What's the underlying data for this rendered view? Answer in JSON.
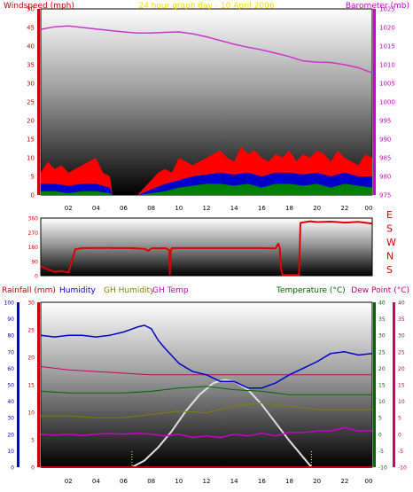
{
  "colors": {
    "wind_axis": "#cc0000",
    "baro_axis": "#cc00cc",
    "title": "#ffd700",
    "wind_gust": "#ff0000",
    "wind_avg": "#0000cc",
    "wind_low": "#008000",
    "barometer": "#cc33cc",
    "direction": "#dd0000",
    "rain": "#cc0000",
    "humidity": "#0000cc",
    "gh_humidity": "#808000",
    "gh_temp": "#cc00cc",
    "temperature": "#006600",
    "dew_point": "#cc0066",
    "solar": "#e0e0e0"
  },
  "chart_data": [
    {
      "type": "line",
      "title": "24 hour graph day - 10 April 2006",
      "ylabel": "Windspeed (mph)",
      "ylabel_right": "Barometer (mb)",
      "ylim": [
        0,
        50
      ],
      "ylim_right": [
        975,
        1025
      ],
      "yticks": [
        "0",
        "5",
        "10",
        "15",
        "20",
        "25",
        "30",
        "35",
        "40",
        "45",
        "50"
      ],
      "yticks_right": [
        "975",
        "980",
        "985",
        "990",
        "995",
        "1000",
        "1005",
        "1010",
        "1015",
        "1020",
        "1025"
      ],
      "xlim": [
        0,
        24
      ],
      "xticks": [
        "02",
        "04",
        "06",
        "08",
        "10",
        "12",
        "14",
        "16",
        "18",
        "20",
        "22",
        "00"
      ],
      "series": [
        {
          "id": "gust",
          "x": [
            0,
            0.5,
            1,
            1.5,
            2,
            2.5,
            3,
            3.5,
            4,
            4.5,
            5,
            5.2,
            7,
            7.5,
            8,
            8.5,
            9,
            9.5,
            10,
            10.5,
            11,
            11.5,
            12,
            12.5,
            13,
            13.5,
            14,
            14.5,
            15,
            15.5,
            16,
            16.5,
            17,
            17.5,
            18,
            18.5,
            19,
            19.5,
            20,
            20.5,
            21,
            21.5,
            22,
            22.5,
            23,
            23.5,
            24
          ],
          "values": [
            6,
            9,
            7,
            8,
            6,
            7,
            8,
            9,
            10,
            6,
            5,
            0,
            0,
            2,
            4,
            6,
            7,
            6,
            10,
            9,
            8,
            9,
            10,
            11,
            12,
            10,
            9,
            13,
            11,
            12,
            10,
            9,
            11,
            10,
            12,
            9,
            11,
            10,
            12,
            11,
            9,
            12,
            10,
            9,
            8,
            11,
            10
          ]
        },
        {
          "id": "avg",
          "x": [
            0,
            1,
            2,
            3,
            4,
            5,
            5.2,
            7,
            8,
            9,
            10,
            11,
            12,
            13,
            14,
            15,
            16,
            17,
            18,
            19,
            20,
            21,
            22,
            23,
            24
          ],
          "values": [
            3,
            3,
            2.5,
            3,
            3,
            2,
            0,
            0,
            1.5,
            3,
            4,
            5,
            5.5,
            6,
            5.5,
            6,
            5,
            6,
            6,
            5.5,
            6,
            5,
            6,
            5,
            5
          ]
        },
        {
          "id": "low",
          "x": [
            0,
            1,
            2,
            3,
            4,
            5,
            5.2,
            7,
            8,
            9,
            10,
            11,
            12,
            13,
            14,
            15,
            16,
            17,
            18,
            19,
            20,
            21,
            22,
            23,
            24
          ],
          "values": [
            1,
            1,
            0.5,
            1,
            1,
            0.5,
            0,
            0,
            0.5,
            1,
            2,
            2.5,
            3,
            3,
            2.5,
            3,
            2,
            3,
            3,
            2.5,
            3,
            2,
            3,
            2.5,
            2
          ]
        },
        {
          "id": "baro",
          "x": [
            0,
            1,
            2,
            3,
            4,
            5,
            6,
            7,
            8,
            9,
            10,
            11,
            12,
            13,
            14,
            15,
            16,
            17,
            18,
            19,
            20,
            21,
            22,
            23,
            24
          ],
          "values": [
            1019.5,
            1020.2,
            1020.4,
            1020.0,
            1019.6,
            1019.2,
            1018.8,
            1018.5,
            1018.5,
            1018.7,
            1018.8,
            1018.3,
            1017.5,
            1016.5,
            1015.5,
            1014.7,
            1014.0,
            1013.1,
            1012.2,
            1011.0,
            1010.7,
            1010.6,
            1010.0,
            1009.2,
            1007.8
          ]
        }
      ]
    },
    {
      "type": "line",
      "labels": [
        "E",
        "S",
        "W",
        "N",
        "S"
      ],
      "ylim": [
        0,
        360
      ],
      "yticks": [
        "0",
        "90",
        "180",
        "270",
        "360"
      ],
      "xlim": [
        0,
        24
      ],
      "series": [
        {
          "id": "direction",
          "x": [
            0,
            0.5,
            1,
            1.5,
            2,
            2.1,
            2.5,
            3,
            4,
            5,
            6,
            6.5,
            7,
            7.5,
            7.8,
            8,
            8.2,
            8.5,
            9,
            9.3,
            9.35,
            9.4,
            9.5,
            10,
            11,
            12,
            13,
            14,
            15,
            16,
            17,
            17.2,
            17.3,
            17.4,
            17.5,
            18.7,
            18.8,
            19.5,
            20,
            21,
            22,
            23,
            24
          ],
          "values": [
            60,
            40,
            25,
            30,
            20,
            45,
            165,
            172,
            173,
            173,
            172,
            172,
            170,
            168,
            155,
            170,
            172,
            170,
            172,
            160,
            10,
            150,
            172,
            172,
            172,
            172,
            172,
            172,
            172,
            172,
            170,
            200,
            175,
            40,
            5,
            5,
            330,
            340,
            335,
            338,
            332,
            336,
            325
          ]
        }
      ]
    },
    {
      "type": "line",
      "title": "",
      "ylabel": "Rainfall (mm)",
      "labels": [
        "Humidity",
        "GH Humidity",
        "GH Temp",
        "Temperature (°C)",
        "Dew Point (°C)"
      ],
      "ylim_humidity": [
        0,
        100
      ],
      "ylim_rain": [
        0,
        30
      ],
      "ylim_temp": [
        -10,
        40
      ],
      "yticks_humidity": [
        "0",
        "10",
        "20",
        "30",
        "40",
        "50",
        "60",
        "70",
        "80",
        "90",
        "100"
      ],
      "yticks_rain": [
        "0",
        "5",
        "10",
        "15",
        "20",
        "25",
        "30"
      ],
      "yticks_temp": [
        "-10",
        "-5",
        "0",
        "5",
        "10",
        "15",
        "20",
        "25",
        "30",
        "35",
        "40"
      ],
      "xlim": [
        0,
        24
      ],
      "xticks": [
        "02",
        "04",
        "06",
        "08",
        "10",
        "12",
        "14",
        "16",
        "18",
        "20",
        "22",
        "00"
      ],
      "series": [
        {
          "id": "humidity",
          "x": [
            0,
            1,
            2,
            3,
            4,
            5,
            6,
            7,
            7.5,
            8,
            8.5,
            9,
            10,
            11,
            12,
            13,
            14,
            15,
            16,
            17,
            18,
            19,
            20,
            21,
            22,
            23,
            24
          ],
          "values": [
            80,
            79,
            80,
            80,
            79,
            80,
            82,
            85,
            86,
            84,
            77,
            72,
            63,
            58,
            56,
            52,
            52,
            48,
            48,
            51,
            56,
            60,
            64,
            69,
            70,
            68,
            69
          ]
        },
        {
          "id": "gh_humidity",
          "x": [
            0,
            2,
            4,
            6,
            8,
            10,
            12,
            14,
            16,
            18,
            20,
            22,
            24
          ],
          "values": [
            31,
            31,
            30,
            30,
            32,
            34,
            33,
            37,
            39,
            37,
            35,
            35,
            35
          ]
        },
        {
          "id": "gh_temp",
          "x": [
            0,
            1,
            2,
            3,
            4,
            5,
            6,
            7,
            8,
            9,
            10,
            11,
            12,
            13,
            14,
            15,
            16,
            17,
            18,
            19,
            20,
            21,
            22,
            23,
            24
          ],
          "values": [
            0,
            -0.3,
            0,
            -0.4,
            0,
            0.2,
            0,
            0.3,
            0,
            -0.5,
            0,
            -1,
            -0.5,
            -1,
            0,
            -0.5,
            0.3,
            -0.5,
            0.5,
            0.5,
            1,
            1,
            2,
            1,
            1
          ]
        },
        {
          "id": "temperature",
          "x": [
            0,
            2,
            4,
            6,
            8,
            10,
            12,
            14,
            16,
            18,
            20,
            22,
            24
          ],
          "values": [
            13,
            12.5,
            12.5,
            12.5,
            13,
            14,
            14.5,
            13.5,
            13,
            12,
            12,
            12,
            12
          ]
        },
        {
          "id": "dew_point",
          "x": [
            0,
            2,
            4,
            6,
            8,
            10,
            12,
            14,
            16,
            18,
            20,
            22,
            24
          ],
          "values": [
            20.5,
            19.5,
            19,
            18.5,
            18,
            18,
            18,
            18,
            18,
            18,
            18,
            18,
            18
          ]
        },
        {
          "id": "solar",
          "x": [
            6.6,
            7.5,
            8.5,
            9.5,
            10.5,
            11.5,
            12.5,
            13.3,
            14,
            15,
            16,
            17,
            18,
            19,
            19.6
          ],
          "values": [
            -10,
            -8,
            -4,
            1,
            7,
            12,
            15.5,
            16.5,
            16,
            13.5,
            9,
            3.5,
            -2,
            -7,
            -10
          ]
        },
        {
          "id": "rain",
          "x": [
            0,
            24
          ],
          "values": [
            0,
            0
          ]
        }
      ],
      "markers": [
        6.6,
        19.6
      ]
    }
  ]
}
